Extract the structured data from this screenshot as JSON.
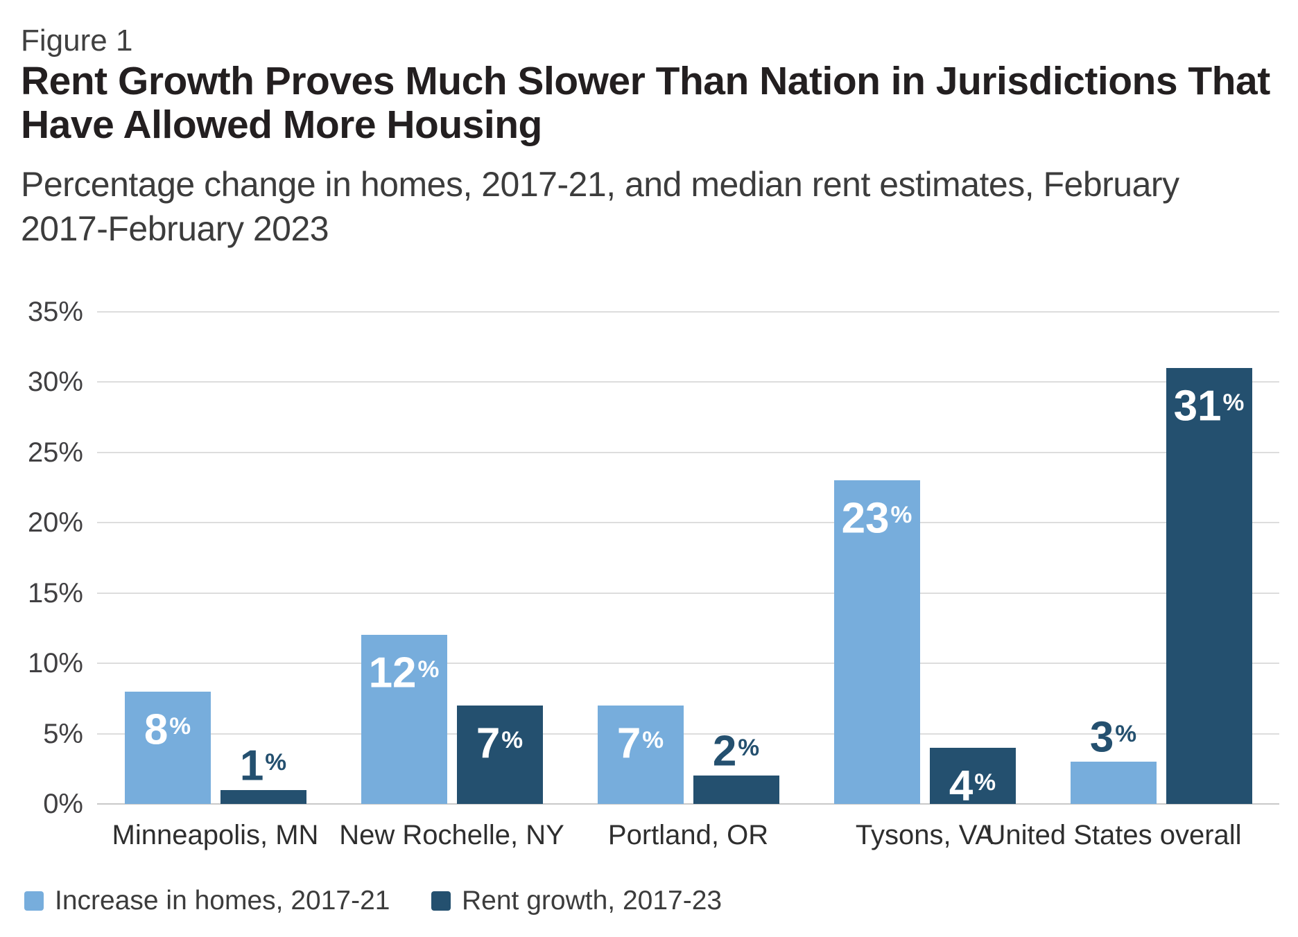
{
  "header": {
    "figure_label": "Figure 1",
    "title_lines": [
      "Rent Growth Proves Much Slower Than Nation in Jurisdictions That",
      "Have Allowed More Housing"
    ],
    "subtitle_lines": [
      "Percentage change in homes, 2017-21, and median rent estimates, February",
      "2017-February 2023"
    ]
  },
  "colors": {
    "light_blue": "#77ADDC",
    "dark_blue": "#24506F",
    "label_inside_text": "#FFFFFF",
    "label_above_text": "#24506F",
    "gridline": "#DDDDDD",
    "axis_line": "#C9C9C9",
    "axis_text": "#414042",
    "category_text": "#2E2E2E",
    "title_text": "#231F20",
    "subtitle_text": "#3C3C3C"
  },
  "chart_data": {
    "type": "bar",
    "title": "Rent Growth Proves Much Slower Than Nation in Jurisdictions That Have Allowed More Housing",
    "subtitle": "Percentage change in homes, 2017-21, and median rent estimates, February 2017-February 2023",
    "categories": [
      "Minneapolis, MN",
      "New Rochelle, NY",
      "Portland, OR",
      "Tysons, VA",
      "United States overall"
    ],
    "series": [
      {
        "name": "Increase in homes, 2017-21",
        "color_key": "light_blue",
        "values": [
          8,
          12,
          7,
          23,
          3
        ],
        "data_labels": [
          "8%",
          "12%",
          "7%",
          "23%",
          "3%"
        ],
        "label_placement": [
          "inside",
          "inside",
          "inside",
          "inside",
          "above"
        ]
      },
      {
        "name": "Rent growth, 2017-23",
        "color_key": "dark_blue",
        "values": [
          1,
          7,
          2,
          4,
          31
        ],
        "data_labels": [
          "1%",
          "7%",
          "2%",
          "4%",
          "31%"
        ],
        "label_placement": [
          "above",
          "inside",
          "above",
          "inside",
          "inside"
        ]
      }
    ],
    "value_suffix": "%",
    "xlabel": "",
    "ylabel": "",
    "y_axis": {
      "min": 0,
      "max": 35,
      "step": 5,
      "tick_labels": [
        "0%",
        "5%",
        "10%",
        "15%",
        "20%",
        "25%",
        "30%",
        "35%"
      ]
    },
    "grid": true,
    "legend_position": "bottom"
  }
}
